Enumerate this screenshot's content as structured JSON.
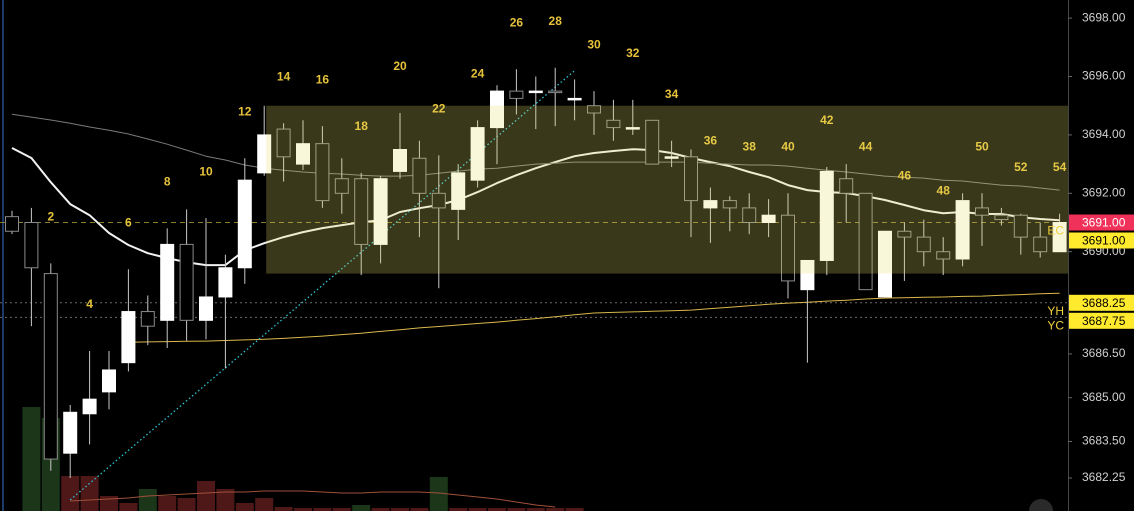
{
  "chart_data": {
    "type": "candlestick",
    "categories": [
      null,
      null,
      "2",
      null,
      "4",
      null,
      "6",
      null,
      "8",
      null,
      "10",
      null,
      "12",
      null,
      "14",
      null,
      "16",
      null,
      "18",
      null,
      "20",
      null,
      "22",
      null,
      "24",
      null,
      "26",
      null,
      "28",
      null,
      "30",
      null,
      "32",
      null,
      "34",
      null,
      "36",
      null,
      "38",
      null,
      "40",
      null,
      "42",
      null,
      "44",
      null,
      "46",
      null,
      "48",
      null,
      "50",
      null,
      "52",
      null,
      "54"
    ],
    "open": [
      3691.2,
      3691.0,
      3689.25,
      3683.1,
      3684.45,
      3685.2,
      3686.2,
      3687.95,
      3687.65,
      3690.25,
      3687.65,
      3688.45,
      3689.45,
      3692.7,
      3694.2,
      3693.0,
      3693.7,
      3692.5,
      3692.5,
      3690.25,
      3692.75,
      3693.2,
      3692.0,
      3691.45,
      3692.45,
      3694.25,
      3695.5,
      3695.5,
      3695.5,
      3695.25,
      3695.0,
      3694.5,
      3694.25,
      3694.5,
      3693.25,
      3693.25,
      3691.5,
      3691.75,
      3691.5,
      3691.0,
      3691.25,
      3688.7,
      3689.7,
      3692.5,
      3692.0,
      3688.45,
      3690.7,
      3690.5,
      3690.0,
      3689.75,
      3691.5,
      3691.25,
      3691.25,
      3690.5,
      3690.0
    ],
    "high": [
      3691.4,
      3691.5,
      3689.6,
      3684.75,
      3686.6,
      3686.6,
      3689.4,
      3688.5,
      3690.8,
      3691.45,
      3691.15,
      3689.9,
      3693.2,
      3695.0,
      3694.4,
      3694.5,
      3694.3,
      3693.2,
      3692.7,
      3692.6,
      3694.75,
      3693.8,
      3693.3,
      3693.0,
      3694.5,
      3695.7,
      3696.25,
      3696.0,
      3696.3,
      3695.9,
      3695.5,
      3695.2,
      3695.2,
      3694.5,
      3693.8,
      3693.5,
      3692.2,
      3691.9,
      3692.0,
      3691.8,
      3692.0,
      3689.7,
      3692.9,
      3693.0,
      3692.0,
      3690.7,
      3691.0,
      3691.1,
      3690.5,
      3692.0,
      3692.0,
      3691.5,
      3691.3,
      3691.0,
      3691.3
    ],
    "low": [
      3690.6,
      3687.45,
      3682.5,
      3682.25,
      3683.4,
      3684.6,
      3685.9,
      3686.8,
      3686.7,
      3686.95,
      3687.0,
      3686.0,
      3688.9,
      3692.6,
      3692.4,
      3692.8,
      3691.5,
      3691.3,
      3689.2,
      3689.6,
      3692.5,
      3690.5,
      3688.75,
      3690.4,
      3692.2,
      3693.0,
      3694.7,
      3694.2,
      3694.3,
      3694.5,
      3694.0,
      3693.8,
      3694.0,
      3693.0,
      3692.9,
      3690.5,
      3690.3,
      3690.7,
      3690.6,
      3690.5,
      3688.4,
      3686.2,
      3689.2,
      3691.0,
      3688.7,
      3688.45,
      3689.0,
      3689.5,
      3689.2,
      3689.5,
      3690.2,
      3690.9,
      3689.9,
      3689.8,
      3690.0
    ],
    "close": [
      3690.7,
      3689.45,
      3682.9,
      3684.5,
      3684.95,
      3685.95,
      3687.95,
      3687.45,
      3690.25,
      3687.65,
      3688.45,
      3689.45,
      3692.45,
      3694.0,
      3693.25,
      3693.7,
      3691.75,
      3692.0,
      3690.25,
      3692.5,
      3693.5,
      3692.0,
      3691.5,
      3692.7,
      3694.25,
      3695.5,
      3695.25,
      3695.5,
      3695.45,
      3695.25,
      3694.75,
      3694.25,
      3694.25,
      3693.0,
      3693.25,
      3691.75,
      3691.75,
      3691.5,
      3691.0,
      3691.25,
      3689.0,
      3689.7,
      3692.75,
      3692.0,
      3688.7,
      3690.7,
      3690.5,
      3690.0,
      3689.75,
      3691.75,
      3691.25,
      3691.1,
      3690.5,
      3690.0,
      3691.0
    ],
    "up_color": "#ffffff",
    "down_color": "#000000",
    "down_border": "#8a8a8a",
    "wick_color": "#c8c8c8",
    "lines": [
      {
        "color": "#f2f2f2",
        "width": 2,
        "values": [
          3693.55,
          3693.21,
          3692.38,
          3691.63,
          3691.25,
          3690.64,
          3690.23,
          3689.95,
          3689.78,
          3689.64,
          3689.54,
          3689.54,
          3690.05,
          3690.29,
          3690.5,
          3690.67,
          3690.81,
          3690.91,
          3691.01,
          3691.08,
          3691.36,
          3691.49,
          3691.6,
          3691.77,
          3692.04,
          3692.35,
          3692.62,
          3692.86,
          3693.07,
          3693.27,
          3693.38,
          3693.45,
          3693.51,
          3693.48,
          3693.38,
          3693.21,
          3693.07,
          3692.93,
          3692.73,
          3692.55,
          3692.28,
          3692.11,
          3692.04,
          3692.01,
          3691.9,
          3691.77,
          3691.6,
          3691.42,
          3691.32,
          3691.36,
          3691.29,
          3691.29,
          3691.18,
          3691.12,
          3691.08
        ]
      },
      {
        "color": "#7a7a7a",
        "width": 1,
        "values": [
          3694.71,
          3694.61,
          3694.51,
          3694.4,
          3694.27,
          3694.16,
          3694.03,
          3693.86,
          3693.68,
          3693.48,
          3693.27,
          3693.14,
          3692.97,
          3692.86,
          3692.79,
          3692.73,
          3692.69,
          3692.66,
          3692.62,
          3692.59,
          3692.59,
          3692.62,
          3692.69,
          3692.76,
          3692.83,
          3692.86,
          3692.93,
          3693.0,
          3693.03,
          3693.07,
          3693.07,
          3693.07,
          3693.07,
          3693.07,
          3693.07,
          3693.07,
          3693.03,
          3693.0,
          3692.97,
          3692.97,
          3692.93,
          3692.86,
          3692.79,
          3692.73,
          3692.66,
          3692.59,
          3692.55,
          3692.52,
          3692.45,
          3692.42,
          3692.35,
          3692.28,
          3692.25,
          3692.18,
          3692.11
        ]
      },
      {
        "color": "#d9b84a",
        "width": 1,
        "values": [
          null,
          null,
          null,
          null,
          null,
          null,
          3686.9,
          3686.91,
          3686.92,
          3686.93,
          3686.94,
          3686.96,
          3686.98,
          3687.0,
          3687.03,
          3687.07,
          3687.11,
          3687.16,
          3687.21,
          3687.27,
          3687.33,
          3687.39,
          3687.44,
          3687.49,
          3687.54,
          3687.59,
          3687.65,
          3687.71,
          3687.77,
          3687.84,
          3687.9,
          3687.92,
          3687.94,
          3687.96,
          3687.98,
          3688.0,
          3688.05,
          3688.1,
          3688.15,
          3688.2,
          3688.24,
          3688.27,
          3688.31,
          3688.34,
          3688.38,
          3688.41,
          3688.42,
          3688.44,
          3688.45,
          3688.47,
          3688.48,
          3688.51,
          3688.53,
          3688.56,
          3688.58
        ]
      }
    ],
    "trendline": {
      "x": [
        3,
        29
      ],
      "values": [
        3681.5,
        3696.2
      ],
      "color": "#2ec4d6"
    },
    "zone": {
      "start": 13,
      "top": 3695.0,
      "bottom": 3689.25,
      "color": "#e6df66"
    },
    "volume": [
      null,
      104,
      93,
      35,
      35,
      15,
      8,
      22,
      15,
      13,
      30,
      22,
      8,
      13,
      4,
      3,
      3,
      3,
      6,
      3,
      3,
      3,
      34,
      3,
      3,
      3,
      3,
      3,
      3,
      3,
      null,
      null,
      null,
      null,
      null,
      null,
      null,
      null,
      null,
      null,
      null,
      null,
      null,
      null,
      null,
      null,
      null,
      null,
      null,
      null,
      null,
      null,
      null,
      null,
      null
    ],
    "volume_colors": [
      null,
      "#1c361a",
      "#1c361a",
      "#4e1818",
      "#4e1818",
      "#4e1818",
      "#4e1818",
      "#1c361a",
      "#4e1818",
      "#4e1818",
      "#4e1818",
      "#4e1818",
      "#4e1818",
      "#4e1818",
      "#4e1818",
      "#4e1818",
      "#4e1818",
      "#4e1818",
      "#1c361a",
      "#4e1818",
      "#4e1818",
      "#4e1818",
      "#1c361a",
      "#4e1818",
      "#4e1818",
      "#4e1818",
      "#4e1818",
      "#4e1818",
      "#4e1818",
      "#4e1818",
      null,
      null,
      null,
      null,
      null,
      null,
      null,
      null,
      null,
      null,
      null,
      null,
      null,
      null,
      null,
      null,
      null,
      null,
      null,
      null,
      null,
      null,
      null,
      null,
      null
    ],
    "volume_ma": {
      "color": "#a0503a",
      "values": [
        null,
        null,
        null,
        10,
        11,
        12,
        13,
        15,
        16,
        17,
        18,
        19,
        19,
        20,
        20,
        20,
        19,
        18,
        18,
        19,
        19,
        19,
        18,
        16,
        14,
        12,
        9,
        6,
        4,
        null,
        null,
        null,
        null,
        null,
        null,
        null,
        null,
        null,
        null,
        null,
        null,
        null,
        null,
        null,
        null,
        null,
        null,
        null,
        null,
        null,
        null,
        null,
        null,
        null,
        null
      ]
    },
    "ylim": [
      3681.12,
      3698.62
    ],
    "yticks": [
      {
        "value": 3698.0,
        "label": "3698.00"
      },
      {
        "value": 3696.0,
        "label": "3696.00"
      },
      {
        "value": 3694.0,
        "label": "3694.00"
      },
      {
        "value": 3692.0,
        "label": "3692.00"
      },
      {
        "value": 3690.0,
        "label": "3690.00"
      },
      {
        "value": 3686.5,
        "label": "3686.50"
      },
      {
        "value": 3685.0,
        "label": "3685.00"
      },
      {
        "value": 3683.5,
        "label": "3683.50"
      },
      {
        "value": 3682.25,
        "label": "3682.25"
      }
    ],
    "markers": [
      {
        "value": 3691.0,
        "label": "3691.00",
        "color": "#f0325a",
        "text_color": "#ffffff"
      },
      {
        "value": 3691.0,
        "label": "3691.00",
        "color": "#ffea2e",
        "text_color": "#000000",
        "tag": "EC",
        "line": "dashed",
        "line_color": "#8a7d2a"
      },
      {
        "value": 3688.25,
        "label": "3688.25",
        "color": "#ffea2e",
        "text_color": "#000000",
        "tag": "YH",
        "line": "dotted",
        "line_color": "#6a6a6a"
      },
      {
        "value": 3687.75,
        "label": "3687.75",
        "color": "#ffea2e",
        "text_color": "#000000",
        "tag": "YC",
        "line": "dotted",
        "line_color": "#6a6a6a"
      }
    ]
  }
}
